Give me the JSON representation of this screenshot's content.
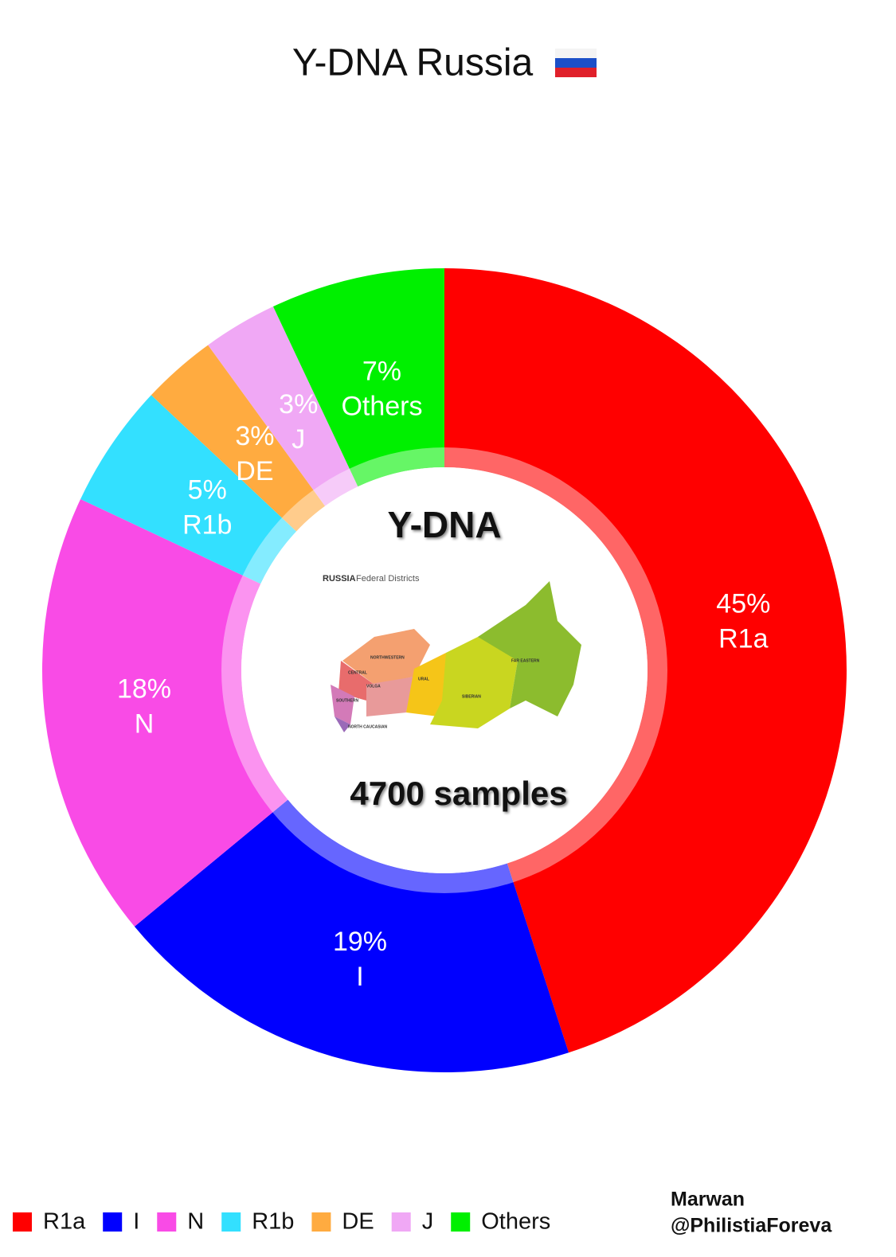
{
  "chart_data": {
    "type": "donut",
    "title": "Y-DNA Russia",
    "categories": [
      "R1a",
      "I",
      "N",
      "R1b",
      "DE",
      "J",
      "Others"
    ],
    "values": [
      45,
      19,
      18,
      5,
      3,
      3,
      7
    ],
    "value_labels": [
      "45%",
      "19%",
      "18%",
      "5%",
      "3%",
      "3%",
      "7%"
    ],
    "colors": [
      "#ff0000",
      "#0000ff",
      "#f94be6",
      "#33e0ff",
      "#ffab40",
      "#f0a8f5",
      "#00f000"
    ],
    "center_title": "Y-DNA",
    "center_subtitle": "4700 samples",
    "legend": "bottom"
  },
  "map": {
    "title": "RUSSIA",
    "subtitle": "Federal Districts",
    "regions": [
      "NORTHWESTERN",
      "CENTRAL",
      "VOLGA",
      "SOUTHERN",
      "NORTH CAUCASIAN",
      "URAL",
      "SIBERIAN",
      "FAR EASTERN"
    ]
  },
  "credit": [
    "Marwan",
    "@PhilistiaForeva"
  ]
}
